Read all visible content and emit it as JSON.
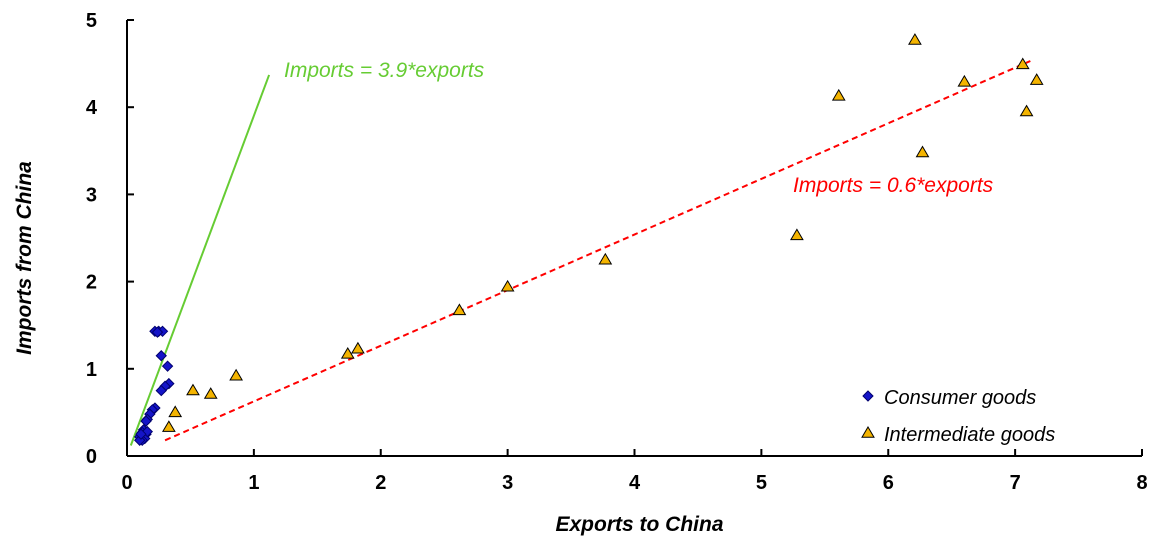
{
  "chart_data": {
    "type": "scatter",
    "title": "",
    "xlabel": "Exports to China",
    "ylabel": "Imports from China",
    "xlim": [
      0,
      8
    ],
    "ylim": [
      0,
      5
    ],
    "x_ticks": [
      "0",
      "1",
      "2",
      "3",
      "4",
      "5",
      "6",
      "7",
      "8"
    ],
    "y_ticks": [
      "0",
      "1",
      "2",
      "3",
      "4",
      "5"
    ],
    "grid": false,
    "legend_position": "bottom-right",
    "series": [
      {
        "name": "Consumer goods",
        "marker": "diamond",
        "color": "#1414c8",
        "points": [
          [
            0.22,
            1.43
          ],
          [
            0.25,
            1.43
          ],
          [
            0.28,
            1.43
          ],
          [
            0.24,
            1.42
          ],
          [
            0.27,
            1.15
          ],
          [
            0.32,
            1.03
          ],
          [
            0.33,
            0.83
          ],
          [
            0.3,
            0.8
          ],
          [
            0.27,
            0.75
          ],
          [
            0.22,
            0.55
          ],
          [
            0.2,
            0.53
          ],
          [
            0.18,
            0.48
          ],
          [
            0.16,
            0.42
          ],
          [
            0.15,
            0.4
          ],
          [
            0.13,
            0.3
          ],
          [
            0.12,
            0.27
          ],
          [
            0.15,
            0.25
          ],
          [
            0.1,
            0.22
          ],
          [
            0.14,
            0.2
          ],
          [
            0.12,
            0.18
          ],
          [
            0.1,
            0.18
          ],
          [
            0.16,
            0.28
          ],
          [
            0.11,
            0.25
          ]
        ]
      },
      {
        "name": "Intermediate goods",
        "marker": "triangle",
        "color": "#f4b400",
        "points": [
          [
            0.33,
            0.33
          ],
          [
            0.38,
            0.5
          ],
          [
            0.52,
            0.75
          ],
          [
            0.66,
            0.71
          ],
          [
            0.86,
            0.92
          ],
          [
            1.74,
            1.17
          ],
          [
            1.82,
            1.23
          ],
          [
            2.62,
            1.67
          ],
          [
            3.0,
            1.94
          ],
          [
            3.77,
            2.25
          ],
          [
            5.28,
            2.53
          ],
          [
            5.61,
            4.13
          ],
          [
            6.21,
            4.77
          ],
          [
            6.27,
            3.48
          ],
          [
            6.6,
            4.29
          ],
          [
            7.06,
            4.49
          ],
          [
            7.09,
            3.95
          ],
          [
            7.17,
            4.31
          ]
        ]
      }
    ],
    "lines": [
      {
        "label": "Imports = 3.9*exports",
        "color": "#66cc33",
        "dash": false,
        "from": [
          0.03,
          0.12
        ],
        "to": [
          1.12,
          4.37
        ]
      },
      {
        "label": "Imports = 0.6*exports",
        "color": "#ff0000",
        "dash": true,
        "from": [
          0.3,
          0.18
        ],
        "to": [
          7.12,
          4.53
        ]
      }
    ]
  }
}
